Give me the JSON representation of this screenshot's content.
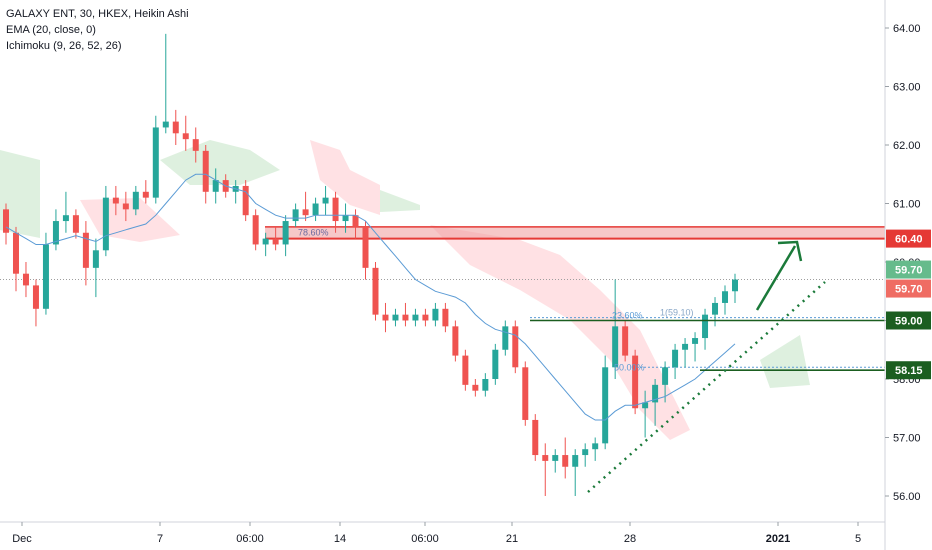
{
  "legend": {
    "title": "GALAXY ENT, 30, HKEX, Heikin Ashi",
    "ema": "EMA (20, close, 0)",
    "ichimoku": "Ichimoku (9, 26, 52, 26)"
  },
  "colors": {
    "up": "#26a69a",
    "down": "#ef5350",
    "ema": "#5b9bd5",
    "cloud_green": "#c8e6c9",
    "cloud_red": "#ffcdd2",
    "resistance": "#e53935",
    "support": "#1b5e20",
    "arrow": "#1b7a3a",
    "tag_last_green": "#66bb8c",
    "tag_last_red": "#ef6c63"
  },
  "annotations": {
    "fib_786": "78.60%",
    "fib_236": "23.60%",
    "fib_1": "1(59.10)",
    "fib_50": "50.00%"
  },
  "chart_data": {
    "type": "candlestick",
    "symbol": "GALAXY ENT",
    "timeframe": "30",
    "exchange": "HKEX",
    "style": "Heikin Ashi",
    "ylim": [
      55.7,
      64.4
    ],
    "y_ticks": [
      "64.00",
      "63.00",
      "62.00",
      "61.00",
      "60.00",
      "59.00",
      "58.00",
      "57.00",
      "56.00"
    ],
    "x_ticks": [
      "Dec",
      "7",
      "06:00",
      "14",
      "06:00",
      "21",
      "28",
      "2021",
      "5"
    ],
    "price_tags": [
      {
        "label": "60.40",
        "value": 60.4,
        "kind": "resistance"
      },
      {
        "label": "59.70",
        "value": 59.7,
        "kind": "last-green"
      },
      {
        "label": "59.70",
        "value": 59.7,
        "kind": "last-red"
      },
      {
        "label": "59.00",
        "value": 59.0,
        "kind": "support"
      },
      {
        "label": "58.15",
        "value": 58.15,
        "kind": "support"
      }
    ],
    "resistance_zone": [
      60.4,
      60.6
    ],
    "support_levels": [
      59.0,
      58.15
    ],
    "last_price": 59.7,
    "ohlc": [
      [
        60.9,
        61.0,
        60.3,
        60.5
      ],
      [
        60.5,
        60.6,
        59.5,
        59.8
      ],
      [
        59.8,
        60.0,
        59.4,
        59.6
      ],
      [
        59.6,
        59.7,
        58.9,
        59.2
      ],
      [
        59.2,
        60.5,
        59.1,
        60.3
      ],
      [
        60.3,
        60.9,
        60.2,
        60.7
      ],
      [
        60.7,
        61.2,
        60.5,
        60.8
      ],
      [
        60.8,
        60.9,
        60.4,
        60.5
      ],
      [
        60.5,
        60.7,
        59.6,
        59.9
      ],
      [
        59.9,
        60.4,
        59.4,
        60.2
      ],
      [
        60.2,
        61.3,
        60.1,
        61.1
      ],
      [
        61.1,
        61.3,
        60.8,
        61.0
      ],
      [
        61.0,
        61.2,
        60.7,
        60.9
      ],
      [
        60.9,
        61.3,
        60.8,
        61.2
      ],
      [
        61.2,
        61.4,
        61.0,
        61.1
      ],
      [
        61.1,
        62.5,
        61.0,
        62.3
      ],
      [
        62.3,
        63.9,
        62.2,
        62.4
      ],
      [
        62.4,
        62.6,
        62.0,
        62.2
      ],
      [
        62.2,
        62.5,
        61.9,
        62.1
      ],
      [
        62.1,
        62.3,
        61.7,
        61.9
      ],
      [
        61.9,
        62.0,
        61.0,
        61.2
      ],
      [
        61.2,
        61.6,
        61.0,
        61.4
      ],
      [
        61.4,
        61.5,
        61.1,
        61.2
      ],
      [
        61.2,
        61.4,
        61.0,
        61.3
      ],
      [
        61.3,
        61.4,
        60.7,
        60.8
      ],
      [
        60.8,
        60.9,
        60.2,
        60.3
      ],
      [
        60.3,
        60.5,
        60.1,
        60.4
      ],
      [
        60.4,
        60.6,
        60.2,
        60.3
      ],
      [
        60.3,
        60.8,
        60.1,
        60.7
      ],
      [
        60.7,
        61.0,
        60.6,
        60.9
      ],
      [
        60.9,
        61.2,
        60.7,
        60.8
      ],
      [
        60.8,
        61.1,
        60.7,
        61.0
      ],
      [
        61.0,
        61.3,
        60.8,
        61.1
      ],
      [
        61.1,
        61.2,
        60.5,
        60.7
      ],
      [
        60.7,
        61.0,
        60.5,
        60.8
      ],
      [
        60.8,
        60.9,
        60.4,
        60.6
      ],
      [
        60.6,
        60.7,
        59.7,
        59.9
      ],
      [
        59.9,
        60.0,
        59.0,
        59.1
      ],
      [
        59.1,
        59.3,
        58.8,
        59.0
      ],
      [
        59.0,
        59.2,
        58.9,
        59.1
      ],
      [
        59.1,
        59.3,
        58.9,
        59.0
      ],
      [
        59.0,
        59.2,
        58.9,
        59.1
      ],
      [
        59.1,
        59.2,
        58.9,
        59.0
      ],
      [
        59.0,
        59.3,
        58.9,
        59.2
      ],
      [
        59.2,
        59.3,
        58.8,
        58.9
      ],
      [
        58.9,
        59.0,
        58.3,
        58.4
      ],
      [
        58.4,
        58.5,
        57.8,
        57.9
      ],
      [
        57.9,
        58.0,
        57.7,
        57.8
      ],
      [
        57.8,
        58.1,
        57.7,
        58.0
      ],
      [
        58.0,
        58.6,
        57.9,
        58.5
      ],
      [
        58.5,
        59.0,
        58.4,
        58.9
      ],
      [
        58.9,
        59.0,
        58.1,
        58.2
      ],
      [
        58.2,
        58.3,
        57.2,
        57.3
      ],
      [
        57.3,
        57.4,
        56.6,
        56.7
      ],
      [
        56.7,
        56.9,
        56.0,
        56.6
      ],
      [
        56.6,
        56.8,
        56.4,
        56.7
      ],
      [
        56.7,
        57.0,
        56.3,
        56.5
      ],
      [
        56.5,
        56.8,
        56.0,
        56.7
      ],
      [
        56.7,
        56.9,
        56.5,
        56.8
      ],
      [
        56.8,
        57.0,
        56.6,
        56.9
      ],
      [
        56.9,
        58.4,
        56.8,
        58.2
      ],
      [
        58.2,
        59.7,
        58.0,
        58.9
      ],
      [
        58.9,
        59.0,
        58.3,
        58.4
      ],
      [
        58.4,
        58.5,
        57.4,
        57.5
      ],
      [
        57.5,
        57.8,
        57.0,
        57.6
      ],
      [
        57.6,
        58.0,
        57.2,
        57.9
      ],
      [
        57.9,
        58.3,
        57.6,
        58.2
      ],
      [
        58.2,
        58.6,
        58.0,
        58.5
      ],
      [
        58.5,
        58.7,
        58.2,
        58.6
      ],
      [
        58.6,
        58.8,
        58.3,
        58.7
      ],
      [
        58.7,
        59.2,
        58.5,
        59.1
      ],
      [
        59.1,
        59.4,
        58.9,
        59.3
      ],
      [
        59.3,
        59.6,
        59.1,
        59.5
      ],
      [
        59.5,
        59.8,
        59.3,
        59.7
      ]
    ],
    "ema": [
      60.6,
      60.5,
      60.4,
      60.3,
      60.3,
      60.35,
      60.4,
      60.45,
      60.4,
      60.35,
      60.45,
      60.5,
      60.55,
      60.6,
      60.65,
      60.8,
      61.0,
      61.2,
      61.4,
      61.5,
      61.5,
      61.4,
      61.3,
      61.25,
      61.2,
      61.0,
      60.9,
      60.8,
      60.75,
      60.75,
      60.75,
      60.8,
      60.8,
      60.8,
      60.8,
      60.8,
      60.7,
      60.5,
      60.3,
      60.1,
      59.9,
      59.7,
      59.6,
      59.5,
      59.45,
      59.4,
      59.3,
      59.1,
      58.95,
      58.85,
      58.8,
      58.75,
      58.6,
      58.4,
      58.2,
      58.0,
      57.8,
      57.6,
      57.4,
      57.3,
      57.3,
      57.45,
      57.55,
      57.55,
      57.6,
      57.65,
      57.7,
      57.8,
      57.9,
      58.0,
      58.15,
      58.3,
      58.45,
      58.6
    ]
  }
}
